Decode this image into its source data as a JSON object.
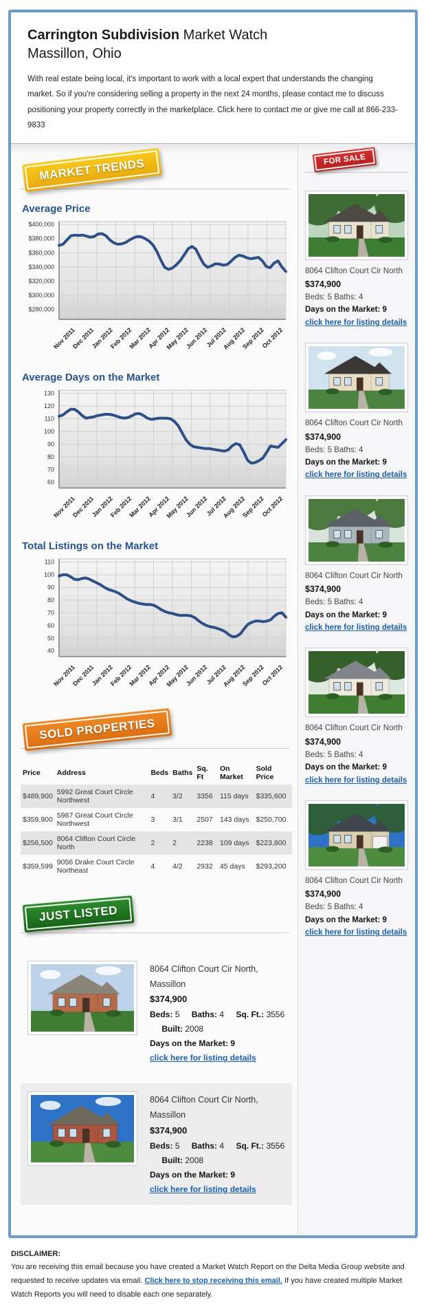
{
  "header": {
    "title_bold": "Carrington Subdivision",
    "title_rest": " Market Watch",
    "subtitle": "Massillon, Ohio",
    "intro": "With real estate being local, it's important to work with a local expert that understands the changing market. So if you're considering selling a property in the next 24 months, please contact me to discuss positioning your property correctly in the marketplace. Click here to contact me or give me call at 866-233-9833"
  },
  "badges": {
    "market_trends": "MARKET TRENDS",
    "for_sale": "FOR SALE",
    "sold_properties": "SOLD PROPERTIES",
    "just_listed": "JUST LISTED"
  },
  "chart_data": [
    {
      "type": "line",
      "title": "Average Price",
      "line_color": "#2d4f87",
      "ylim": [
        266000,
        404000
      ],
      "yticks": [
        {
          "v": 400000,
          "label": "$400,000"
        },
        {
          "v": 380000,
          "label": "$380,000"
        },
        {
          "v": 360000,
          "label": "$360,000"
        },
        {
          "v": 340000,
          "label": "$340,000"
        },
        {
          "v": 320000,
          "label": "$320,000"
        },
        {
          "v": 300000,
          "label": "$300,000"
        },
        {
          "v": 280000,
          "label": "$280,000"
        }
      ],
      "x_labels": [
        "Nov 2011",
        "Dec 2011",
        "Jan 2012",
        "Feb 2012",
        "Mar 2012",
        "Apr 2012",
        "May 2012",
        "Jun 2012",
        "Jul 2012",
        "Aug 2012",
        "Sep 2012",
        "Oct 2012"
      ],
      "values": [
        370500,
        372000,
        378000,
        384000,
        385000,
        384500,
        385000,
        383500,
        382000,
        383000,
        386500,
        387000,
        384000,
        378000,
        374000,
        372000,
        372500,
        374500,
        378000,
        381000,
        383000,
        382500,
        380000,
        376500,
        371000,
        362000,
        350000,
        339500,
        336500,
        338500,
        343000,
        349000,
        357000,
        365500,
        369000,
        365000,
        354000,
        344000,
        339500,
        341500,
        344500,
        344000,
        342500,
        343500,
        348000,
        353500,
        356500,
        355500,
        353000,
        351500,
        352500,
        353500,
        348500,
        340500,
        339000,
        345500,
        348500,
        340000,
        333500
      ]
    },
    {
      "type": "line",
      "title": "Average Days on the Market",
      "line_color": "#2d4f87",
      "ylim": [
        55.5,
        132.5
      ],
      "yticks": [
        {
          "v": 130,
          "label": "130"
        },
        {
          "v": 120,
          "label": "120"
        },
        {
          "v": 110,
          "label": "110"
        },
        {
          "v": 100,
          "label": "100"
        },
        {
          "v": 90,
          "label": "90"
        },
        {
          "v": 80,
          "label": "80"
        },
        {
          "v": 70,
          "label": "70"
        },
        {
          "v": 60,
          "label": "60"
        }
      ],
      "x_labels": [
        "Nov 2011",
        "Dec 2011",
        "Jan 2012",
        "Feb 2012",
        "Mar 2012",
        "Apr 2012",
        "May 2012",
        "Jun 2012",
        "Jul 2012",
        "Aug 2012",
        "Sep 2012",
        "Oct 2012"
      ],
      "values": [
        112,
        113,
        115.5,
        117.5,
        117.5,
        115.5,
        112.5,
        110.5,
        111,
        111.5,
        112.5,
        113,
        113.5,
        113.5,
        113,
        112,
        111,
        110.5,
        111,
        112.5,
        114,
        114,
        112.5,
        110.5,
        109.5,
        110,
        110.5,
        110.5,
        110.5,
        110,
        108,
        104.5,
        99,
        93.5,
        90,
        88,
        87.5,
        87,
        86.5,
        86.5,
        86,
        85.5,
        85,
        84.5,
        85.5,
        88.5,
        90.5,
        89.5,
        84,
        77.5,
        75,
        75.5,
        77,
        79,
        83.5,
        88.5,
        88,
        87.5,
        90.5,
        93.5
      ]
    },
    {
      "type": "line",
      "title": "Total Listings on the Market",
      "line_color": "#2d4f87",
      "ylim": [
        35.5,
        112.5
      ],
      "yticks": [
        {
          "v": 110,
          "label": "110"
        },
        {
          "v": 100,
          "label": "100"
        },
        {
          "v": 90,
          "label": "90"
        },
        {
          "v": 80,
          "label": "80"
        },
        {
          "v": 70,
          "label": "70"
        },
        {
          "v": 60,
          "label": "60"
        },
        {
          "v": 50,
          "label": "50"
        },
        {
          "v": 40,
          "label": "40"
        }
      ],
      "x_labels": [
        "Nov 2011",
        "Dec 2011",
        "Jan 2012",
        "Feb 2012",
        "Mar 2012",
        "Apr 2012",
        "May 2012",
        "Jun 2012",
        "Jul 2012",
        "Aug 2012",
        "Sep 2012",
        "Oct 2012"
      ],
      "values": [
        99,
        100,
        100,
        98.5,
        96.5,
        96,
        97,
        97.5,
        96.5,
        95,
        93.5,
        92,
        90,
        88.5,
        87.5,
        86.5,
        85,
        83,
        81,
        79.5,
        78.5,
        77.5,
        77,
        76.5,
        76.5,
        76,
        74.5,
        72.5,
        71,
        70,
        69.5,
        68.5,
        68,
        68,
        68,
        67.5,
        66,
        63.5,
        61.5,
        60,
        59,
        58.5,
        57.5,
        56.5,
        55,
        52.5,
        51,
        51.5,
        53.5,
        57.5,
        61,
        62.5,
        63.5,
        63.5,
        63,
        63.5,
        64.5,
        67.5,
        69.5,
        70,
        66.5
      ]
    }
  ],
  "sale": {
    "listings": [
      {
        "address": "8064 Clifton Court Cir North",
        "price": "$374,900",
        "beds_baths": "Beds: 5 Baths: 4",
        "days": "Days on the Market: 9",
        "link": "click here for listing details",
        "photo": {
          "sky": "#bcd6bd",
          "trees": true,
          "tree": "#3f6b35",
          "wall": "#e9e2cf",
          "roof": "#4d4a45",
          "grass": "#3e7e33",
          "garage": false
        }
      },
      {
        "address": "8064 Clifton Court Cir North",
        "price": "$374,900",
        "beds_baths": "Beds: 5 Baths: 4",
        "days": "Days on the Market: 9",
        "link": "click here for listing details",
        "photo": {
          "sky": "#cfe2ee",
          "trees": false,
          "tree": "#4c7a3e",
          "wall": "#e7ddc2",
          "roof": "#3b3835",
          "grass": "#4c8340",
          "garage": false
        }
      },
      {
        "address": "8064 Clifton Court Cir North",
        "price": "$374,900",
        "beds_baths": "Beds: 5 Baths: 4",
        "days": "Days on the Market: 9",
        "link": "click here for listing details",
        "photo": {
          "sky": "#d8e4da",
          "trees": true,
          "tree": "#4c7a3e",
          "wall": "#a8b6bc",
          "roof": "#5b6166",
          "grass": "#4c8340",
          "garage": false
        }
      },
      {
        "address": "8064 Clifton Court Cir North",
        "price": "$374,900",
        "beds_baths": "Beds: 5 Baths: 4",
        "days": "Days on the Market: 9",
        "link": "click here for listing details",
        "photo": {
          "sky": "#dfe8df",
          "trees": true,
          "tree": "#35602c",
          "wall": "#eee9df",
          "roof": "#80858b",
          "grass": "#3f7e31",
          "garage": false
        }
      },
      {
        "address": "8064 Clifton Court Cir North",
        "price": "$374,900",
        "beds_baths": "Beds: 5 Baths: 4",
        "days": "Days on the Market: 9",
        "link": "click here for listing details",
        "photo": {
          "sky": "#2e72c8",
          "trees": true,
          "tree": "#2f5f3a",
          "wall": "#d9cfae",
          "roof": "#41464d",
          "grass": "#4e8c3f",
          "garage": true
        }
      }
    ]
  },
  "sold": {
    "headers": [
      "Price",
      "Address",
      "Beds",
      "Baths",
      "Sq. Ft",
      "On Market",
      "Sold Price"
    ],
    "rows": [
      {
        "price": "$489,900",
        "address": "5992 Great Court Circle Northwest",
        "beds": "4",
        "baths": "3/2",
        "sqft": "3356",
        "on_market": "115 days",
        "sold_price": "$335,600"
      },
      {
        "price": "$359,900",
        "address": "5987 Great Court Circle Northwest",
        "beds": "3",
        "baths": "3/1",
        "sqft": "2507",
        "on_market": "143 days",
        "sold_price": "$250,700"
      },
      {
        "price": "$256,500",
        "address": "8064 Clifton Court Circle North",
        "beds": "2",
        "baths": "2",
        "sqft": "2238",
        "on_market": "109 days",
        "sold_price": "$223,800"
      },
      {
        "price": "$359,599",
        "address": "9056 Drake Court Circle Northeast",
        "beds": "4",
        "baths": "4/2",
        "sqft": "2932",
        "on_market": "45 days",
        "sold_price": "$293,200"
      }
    ]
  },
  "just_listed": {
    "items": [
      {
        "address": "8064 Clifton Court Cir North, Massillon",
        "price": "$374,900",
        "beds_label": "Beds:",
        "beds": "5",
        "baths_label": "Baths:",
        "baths": "4",
        "sqft_label": "Sq. Ft.:",
        "sqft": "3556",
        "built_label": "Built:",
        "built": "2008",
        "days": "Days on the Market: 9",
        "link": "click here for listing details",
        "photo": {
          "sky": "#bcd2e8",
          "trees": false,
          "tree": "#3f6b35",
          "wall": "#b56b4a",
          "roof": "#8a8578",
          "grass": "#3f7e33",
          "garage": false
        }
      },
      {
        "address": "8064 Clifton Court Cir North, Massillon",
        "price": "$374,900",
        "beds_label": "Beds:",
        "beds": "5",
        "baths_label": "Baths:",
        "baths": "4",
        "sqft_label": "Sq. Ft.:",
        "sqft": "3556",
        "built_label": "Built:",
        "built": "2008",
        "days": "Days on the Market: 9",
        "link": "click here for listing details",
        "photo": {
          "sky": "#2e72c8",
          "trees": false,
          "tree": "#3f6b35",
          "wall": "#a9553f",
          "roof": "#6e6a5e",
          "grass": "#4e8c3f",
          "garage": false
        }
      }
    ]
  },
  "disclaimer": {
    "heading": "DISCLAIMER:",
    "text_before": "You are receiving this email because you have created a Market Watch Report on the Delta Media Group website and requested to receive updates via email. ",
    "link": "Click here to stop receiving this email.",
    "text_after": " If you have created multiple Market Watch Reports you will need to disable each one separately."
  }
}
